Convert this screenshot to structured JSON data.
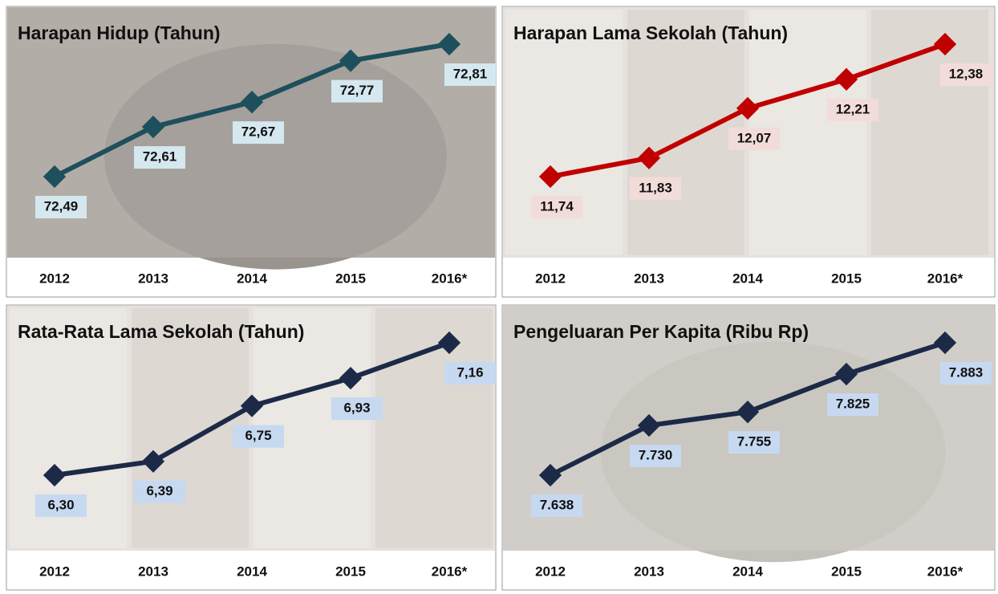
{
  "chart_data": [
    {
      "type": "line",
      "title": "Harapan Hidup (Tahun)",
      "categories": [
        "2012",
        "2013",
        "2014",
        "2015",
        "2016*"
      ],
      "values": [
        72.49,
        72.61,
        72.67,
        72.77,
        72.81
      ],
      "value_labels": [
        "72,49",
        "72,61",
        "72,67",
        "72,77",
        "72,81"
      ],
      "color": "#1e4f5c"
    },
    {
      "type": "line",
      "title": "Harapan Lama Sekolah (Tahun)",
      "categories": [
        "2012",
        "2013",
        "2014",
        "2015",
        "2016*"
      ],
      "values": [
        11.74,
        11.83,
        12.07,
        12.21,
        12.38
      ],
      "value_labels": [
        "11,74",
        "11,83",
        "12,07",
        "12,21",
        "12,38"
      ],
      "color": "#c00000"
    },
    {
      "type": "line",
      "title": "Rata-Rata Lama Sekolah (Tahun)",
      "categories": [
        "2012",
        "2013",
        "2014",
        "2015",
        "2016*"
      ],
      "values": [
        6.3,
        6.39,
        6.75,
        6.93,
        7.16
      ],
      "value_labels": [
        "6,30",
        "6,39",
        "6,75",
        "6,93",
        "7,16"
      ],
      "color": "#1c2a48"
    },
    {
      "type": "line",
      "title": "Pengeluaran Per Kapita (Ribu Rp)",
      "categories": [
        "2012",
        "2013",
        "2014",
        "2015",
        "2016*"
      ],
      "values": [
        7638,
        7730,
        7755,
        7825,
        7883
      ],
      "value_labels": [
        "7.638",
        "7.730",
        "7.755",
        "7.825",
        "7.883"
      ],
      "color": "#1c2a48"
    }
  ]
}
